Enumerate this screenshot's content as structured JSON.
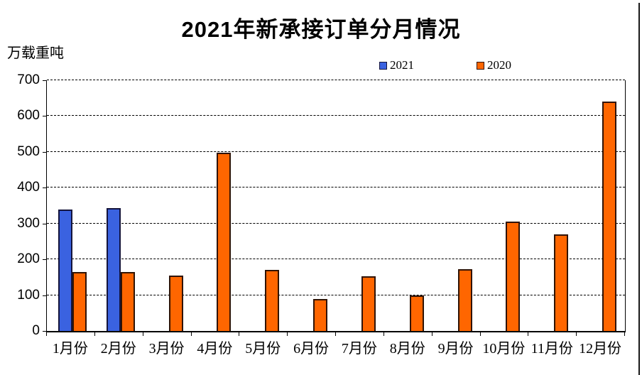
{
  "title": "2021年新承接订单分月情况",
  "chart_data": {
    "type": "bar",
    "title": "2021年新承接订单分月情况",
    "unit_label": "万载重吨",
    "categories": [
      "1月份",
      "2月份",
      "3月份",
      "4月份",
      "5月份",
      "6月份",
      "7月份",
      "8月份",
      "9月份",
      "10月份",
      "11月份",
      "12月份"
    ],
    "series": [
      {
        "name": "2021",
        "color": "#3a62e0",
        "values": [
          340,
          343,
          null,
          null,
          null,
          null,
          null,
          null,
          null,
          null,
          null,
          null
        ]
      },
      {
        "name": "2020",
        "color": "#ff6600",
        "values": [
          165,
          165,
          155,
          498,
          170,
          90,
          152,
          100,
          172,
          305,
          270,
          640
        ]
      }
    ],
    "ylim": [
      0,
      700
    ],
    "yticks": [
      0,
      100,
      200,
      300,
      400,
      500,
      600,
      700
    ],
    "grid": "horizontal-dashed",
    "legend_position": "top-center",
    "colors": {
      "series_2021": "#3a62e0",
      "series_2020": "#ff6600",
      "grid": "#000000",
      "background": "#ffffff"
    }
  }
}
